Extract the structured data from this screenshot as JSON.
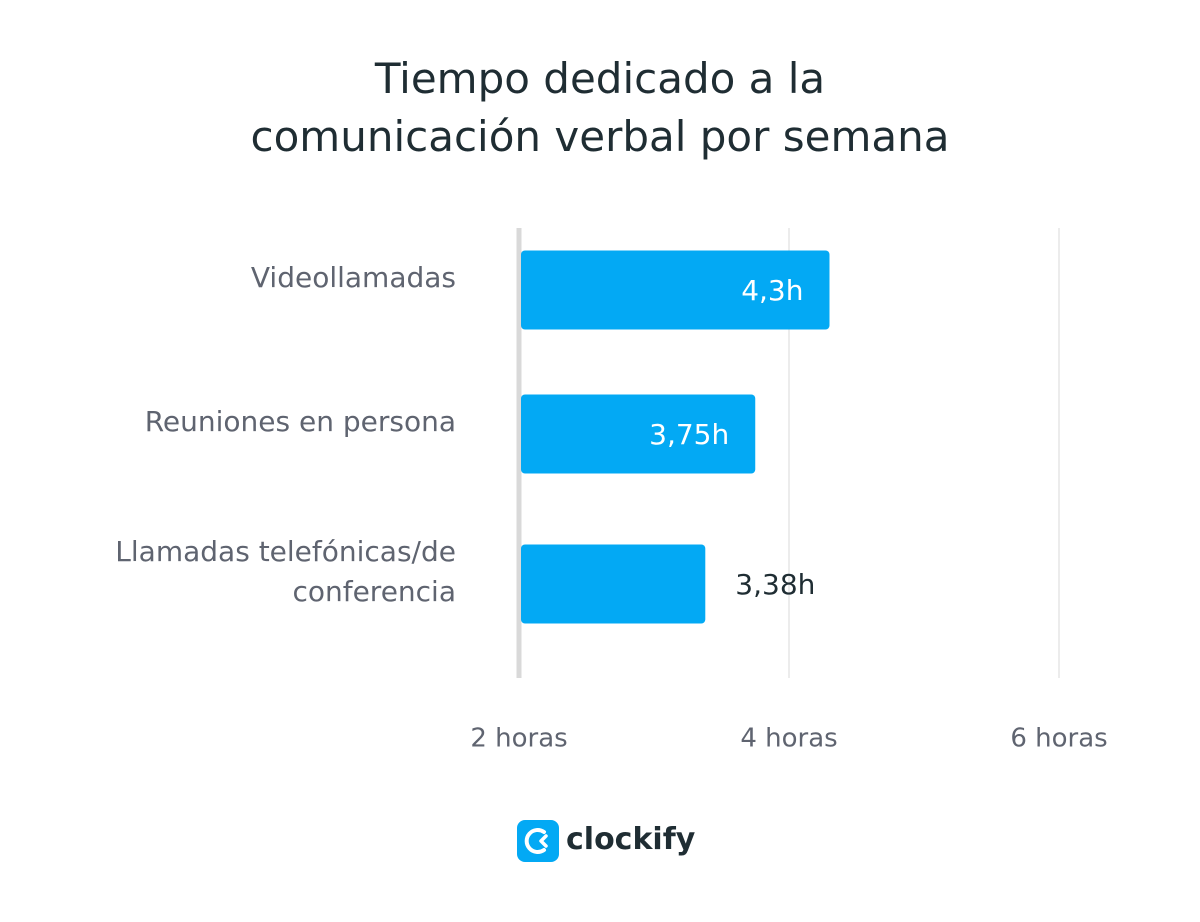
{
  "chart_data": {
    "type": "bar",
    "orientation": "horizontal",
    "title": "Tiempo dedicado a la\ncomunicación verbal por semana",
    "categories": [
      "Videollamadas",
      "Reuniones en persona",
      "Llamadas telefónicas/de\nconferencia"
    ],
    "values": [
      4.3,
      3.75,
      3.38
    ],
    "value_labels": [
      "4,3h",
      "3,75h",
      "3,38h"
    ],
    "color": "#03a9f4",
    "xlim": [
      2,
      6
    ],
    "xticks": [
      {
        "value": 2,
        "label": "2 horas"
      },
      {
        "value": 4,
        "label": "4 horas"
      },
      {
        "value": 6,
        "label": "6 horas"
      }
    ],
    "grid": true
  },
  "brand": "clockify"
}
